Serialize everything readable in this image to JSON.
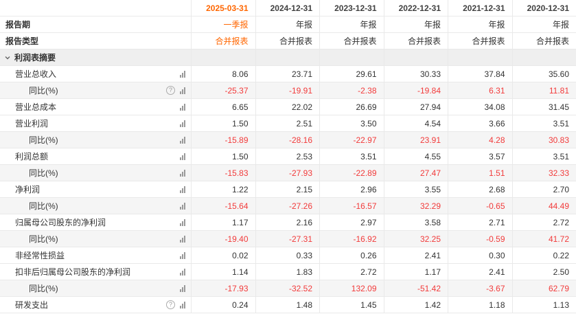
{
  "colors": {
    "accent_orange": "#ff6600",
    "value_red": "#f23a3a",
    "text_dark": "#333333",
    "row_alt_bg": "#f5f5f5",
    "section_bg": "#efefef",
    "grid_line": "#e9e9e9"
  },
  "icons": {
    "help_glyph": "?",
    "bar_chart": "mini-bar-chart",
    "chevron": "chevron-down"
  },
  "table": {
    "report_period_label": "报告期",
    "report_type_label": "报告类型",
    "section_label": "利润表摘要",
    "columns": [
      {
        "date": "2025-03-31",
        "period": "一季报",
        "type": "合并报表",
        "highlight": true
      },
      {
        "date": "2024-12-31",
        "period": "年报",
        "type": "合并报表",
        "highlight": false
      },
      {
        "date": "2023-12-31",
        "period": "年报",
        "type": "合并报表",
        "highlight": false
      },
      {
        "date": "2022-12-31",
        "period": "年报",
        "type": "合并报表",
        "highlight": false
      },
      {
        "date": "2021-12-31",
        "period": "年报",
        "type": "合并报表",
        "highlight": false
      },
      {
        "date": "2020-12-31",
        "period": "年报",
        "type": "合并报表",
        "highlight": false
      }
    ],
    "rows": [
      {
        "label": "营业总收入",
        "indent": 1,
        "help": false,
        "chart": true,
        "red": false,
        "alt": false,
        "values": [
          "8.06",
          "23.71",
          "29.61",
          "30.33",
          "37.84",
          "35.60"
        ]
      },
      {
        "label": "同比(%)",
        "indent": 2,
        "help": true,
        "chart": true,
        "red": true,
        "alt": true,
        "values": [
          "-25.37",
          "-19.91",
          "-2.38",
          "-19.84",
          "6.31",
          "11.81"
        ]
      },
      {
        "label": "营业总成本",
        "indent": 1,
        "help": false,
        "chart": true,
        "red": false,
        "alt": false,
        "values": [
          "6.65",
          "22.02",
          "26.69",
          "27.94",
          "34.08",
          "31.45"
        ]
      },
      {
        "label": "营业利润",
        "indent": 1,
        "help": false,
        "chart": true,
        "red": false,
        "alt": false,
        "values": [
          "1.50",
          "2.51",
          "3.50",
          "4.54",
          "3.66",
          "3.51"
        ]
      },
      {
        "label": "同比(%)",
        "indent": 2,
        "help": false,
        "chart": true,
        "red": true,
        "alt": true,
        "values": [
          "-15.89",
          "-28.16",
          "-22.97",
          "23.91",
          "4.28",
          "30.83"
        ]
      },
      {
        "label": "利润总额",
        "indent": 1,
        "help": false,
        "chart": true,
        "red": false,
        "alt": false,
        "values": [
          "1.50",
          "2.53",
          "3.51",
          "4.55",
          "3.57",
          "3.51"
        ]
      },
      {
        "label": "同比(%)",
        "indent": 2,
        "help": false,
        "chart": true,
        "red": true,
        "alt": true,
        "values": [
          "-15.83",
          "-27.93",
          "-22.89",
          "27.47",
          "1.51",
          "32.33"
        ]
      },
      {
        "label": "净利润",
        "indent": 1,
        "help": false,
        "chart": true,
        "red": false,
        "alt": false,
        "values": [
          "1.22",
          "2.15",
          "2.96",
          "3.55",
          "2.68",
          "2.70"
        ]
      },
      {
        "label": "同比(%)",
        "indent": 2,
        "help": false,
        "chart": true,
        "red": true,
        "alt": true,
        "values": [
          "-15.64",
          "-27.26",
          "-16.57",
          "32.29",
          "-0.65",
          "44.49"
        ]
      },
      {
        "label": "归属母公司股东的净利润",
        "indent": 1,
        "help": false,
        "chart": true,
        "red": false,
        "alt": false,
        "values": [
          "1.17",
          "2.16",
          "2.97",
          "3.58",
          "2.71",
          "2.72"
        ]
      },
      {
        "label": "同比(%)",
        "indent": 2,
        "help": false,
        "chart": true,
        "red": true,
        "alt": true,
        "values": [
          "-19.40",
          "-27.31",
          "-16.92",
          "32.25",
          "-0.59",
          "41.72"
        ]
      },
      {
        "label": "非经常性损益",
        "indent": 1,
        "help": false,
        "chart": true,
        "red": false,
        "alt": false,
        "values": [
          "0.02",
          "0.33",
          "0.26",
          "2.41",
          "0.30",
          "0.22"
        ]
      },
      {
        "label": "扣非后归属母公司股东的净利润",
        "indent": 1,
        "help": false,
        "chart": true,
        "red": false,
        "alt": false,
        "values": [
          "1.14",
          "1.83",
          "2.72",
          "1.17",
          "2.41",
          "2.50"
        ]
      },
      {
        "label": "同比(%)",
        "indent": 2,
        "help": false,
        "chart": true,
        "red": true,
        "alt": true,
        "values": [
          "-17.93",
          "-32.52",
          "132.09",
          "-51.42",
          "-3.67",
          "62.79"
        ]
      },
      {
        "label": "研发支出",
        "indent": 1,
        "help": true,
        "chart": true,
        "red": false,
        "alt": false,
        "values": [
          "0.24",
          "1.48",
          "1.45",
          "1.42",
          "1.18",
          "1.13"
        ]
      }
    ]
  }
}
